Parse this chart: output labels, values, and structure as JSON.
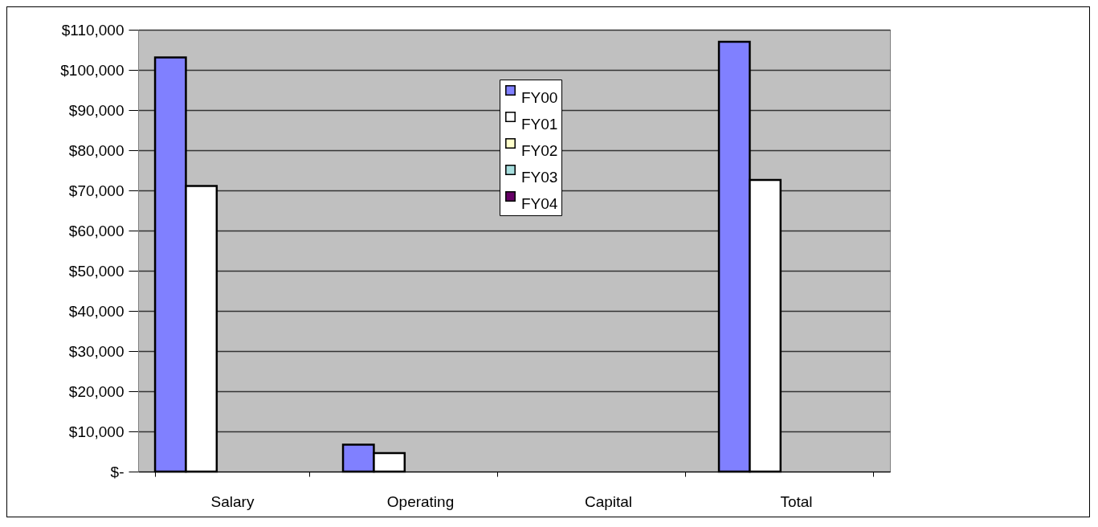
{
  "chart_data": {
    "type": "bar",
    "categories": [
      "Salary",
      "Operating",
      "Capital",
      "Total"
    ],
    "series": [
      {
        "name": "FY00",
        "color": "#8080ff",
        "values": [
          103100,
          6700,
          null,
          107000
        ]
      },
      {
        "name": "FY01",
        "color": "#ffffff",
        "values": [
          71100,
          4600,
          null,
          72600
        ]
      },
      {
        "name": "FY02",
        "color": "#ffffcc",
        "values": [
          null,
          null,
          null,
          null
        ]
      },
      {
        "name": "FY03",
        "color": "#a6dede",
        "values": [
          null,
          null,
          null,
          null
        ]
      },
      {
        "name": "FY04",
        "color": "#660066",
        "values": [
          null,
          null,
          null,
          null
        ]
      }
    ],
    "ylim": [
      0,
      110000
    ],
    "yticks": [
      {
        "value": 0,
        "label": "$-"
      },
      {
        "value": 10000,
        "label": "$10,000"
      },
      {
        "value": 20000,
        "label": "$20,000"
      },
      {
        "value": 30000,
        "label": "$30,000"
      },
      {
        "value": 40000,
        "label": "$40,000"
      },
      {
        "value": 50000,
        "label": "$50,000"
      },
      {
        "value": 60000,
        "label": "$60,000"
      },
      {
        "value": 70000,
        "label": "$70,000"
      },
      {
        "value": 80000,
        "label": "$80,000"
      },
      {
        "value": 90000,
        "label": "$90,000"
      },
      {
        "value": 100000,
        "label": "$100,000"
      },
      {
        "value": 110000,
        "label": "$110,000"
      }
    ],
    "grid": "y",
    "legend": "top"
  }
}
